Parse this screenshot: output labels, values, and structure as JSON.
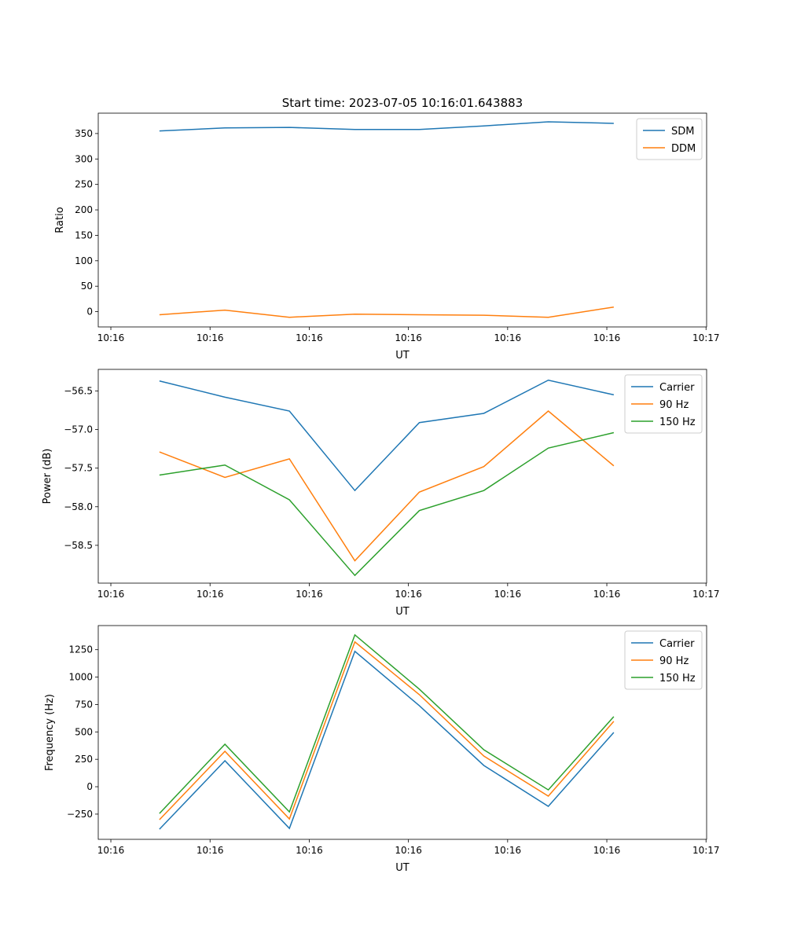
{
  "chart_data": [
    {
      "type": "line",
      "title": "Start time: 2023-07-05 10:16:01.643883",
      "xlabel": "UT",
      "ylabel": "Ratio",
      "x_seconds_after_10_16": [
        4.9,
        11.5,
        18.0,
        24.6,
        31.1,
        37.6,
        44.1,
        50.7
      ],
      "xlim": [
        -1.27,
        60.06
      ],
      "xticks": [
        0,
        10,
        20,
        30,
        40,
        50,
        60
      ],
      "xtick_labels": [
        "10:16",
        "10:16",
        "10:16",
        "10:16",
        "10:16",
        "10:16",
        "10:17"
      ],
      "ylim": [
        -30,
        390
      ],
      "yticks": [
        0,
        50,
        100,
        150,
        200,
        250,
        300,
        350
      ],
      "ytick_labels": [
        "0",
        "50",
        "100",
        "150",
        "200",
        "250",
        "300",
        "350"
      ],
      "legend": "top-right",
      "series": [
        {
          "name": "SDM",
          "color": "#1f77b4",
          "values": [
            355,
            361,
            362,
            358,
            358,
            365,
            373,
            370
          ]
        },
        {
          "name": "DDM",
          "color": "#ff7f0e",
          "values": [
            -6,
            3,
            -11,
            -5,
            -6,
            -7,
            -11,
            9
          ]
        }
      ]
    },
    {
      "type": "line",
      "xlabel": "UT",
      "ylabel": "Power (dB)",
      "x_seconds_after_10_16": [
        4.9,
        11.5,
        18.0,
        24.6,
        31.1,
        37.6,
        44.1,
        50.7
      ],
      "xlim": [
        -1.27,
        60.06
      ],
      "xticks": [
        0,
        10,
        20,
        30,
        40,
        50,
        60
      ],
      "xtick_labels": [
        "10:16",
        "10:16",
        "10:16",
        "10:16",
        "10:16",
        "10:16",
        "10:17"
      ],
      "ylim": [
        -58.99,
        -56.22
      ],
      "yticks": [
        -58.5,
        -58.0,
        -57.5,
        -57.0,
        -56.5
      ],
      "ytick_labels": [
        "−58.5",
        "−58.0",
        "−57.5",
        "−57.0",
        "−56.5"
      ],
      "legend": "top-right",
      "series": [
        {
          "name": "Carrier",
          "color": "#1f77b4",
          "values": [
            -56.37,
            -56.58,
            -56.76,
            -57.79,
            -56.91,
            -56.79,
            -56.36,
            -56.55
          ]
        },
        {
          "name": "90 Hz",
          "color": "#ff7f0e",
          "values": [
            -57.29,
            -57.62,
            -57.38,
            -58.7,
            -57.81,
            -57.48,
            -56.76,
            -57.47
          ]
        },
        {
          "name": "150 Hz",
          "color": "#2ca02c",
          "values": [
            -57.59,
            -57.46,
            -57.91,
            -58.89,
            -58.05,
            -57.79,
            -57.24,
            -57.04
          ]
        }
      ]
    },
    {
      "type": "line",
      "xlabel": "UT",
      "ylabel": "Frequency (Hz)",
      "x_seconds_after_10_16": [
        4.9,
        11.5,
        18.0,
        24.6,
        31.1,
        37.6,
        44.1,
        50.7
      ],
      "xlim": [
        -1.27,
        60.06
      ],
      "xticks": [
        0,
        10,
        20,
        30,
        40,
        50,
        60
      ],
      "xtick_labels": [
        "10:16",
        "10:16",
        "10:16",
        "10:16",
        "10:16",
        "10:16",
        "10:17"
      ],
      "ylim": [
        -480,
        1470
      ],
      "yticks": [
        -250,
        0,
        250,
        500,
        750,
        1000,
        1250
      ],
      "ytick_labels": [
        "−250",
        "0",
        "250",
        "500",
        "750",
        "1000",
        "1250"
      ],
      "legend": "top-right",
      "series": [
        {
          "name": "Carrier",
          "color": "#1f77b4",
          "values": [
            -388,
            237,
            -380,
            1235,
            739,
            194,
            -179,
            495
          ]
        },
        {
          "name": "90 Hz",
          "color": "#ff7f0e",
          "values": [
            -301,
            323,
            -294,
            1321,
            840,
            280,
            -86,
            596
          ]
        },
        {
          "name": "150 Hz",
          "color": "#2ca02c",
          "values": [
            -244,
            388,
            -230,
            1385,
            890,
            337,
            -29,
            639
          ]
        }
      ]
    }
  ]
}
